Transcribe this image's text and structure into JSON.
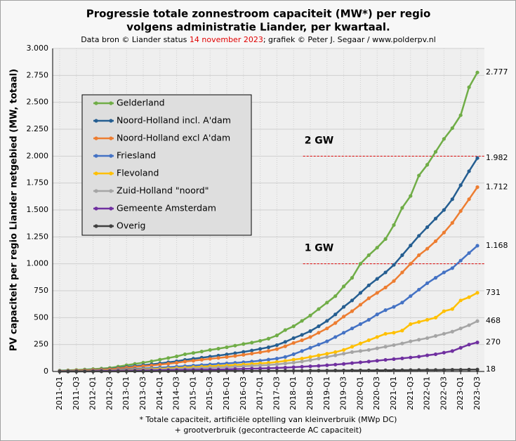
{
  "chart_data": {
    "type": "line",
    "title": [
      "Progressie totale zonnestroom capaciteit (MW*) per regio",
      "volgens administratie Liander, per kwartaal."
    ],
    "subtitle": [
      "Data bron © Liander status ",
      "14 november 2023",
      "; grafiek © Peter J. Segaar / www.polderpv.nl"
    ],
    "ylabel": "PV capaciteit per regio Liander netgebied (MW, totaal)",
    "footnote": [
      "* Totale capaciteit, artificiële optelling van kleinverbruik (MWp DC)",
      "+ grootverbruik (gecontracteerde AC capaciteit)"
    ],
    "categories": [
      "2011-Q1",
      null,
      "2011-Q3",
      null,
      "2012-Q1",
      null,
      "2012-Q3",
      null,
      "2013-Q1",
      null,
      "2013-Q3",
      null,
      "2014-Q1",
      null,
      "2014-Q3",
      null,
      "2015-Q1",
      null,
      "2015-Q3",
      null,
      "2016-Q1",
      null,
      "2016-Q3",
      null,
      "2017-Q1",
      null,
      "2017-Q3",
      null,
      "2018-Q1",
      null,
      "2018-Q3",
      null,
      "2019-Q1",
      null,
      "2019-Q3",
      null,
      "2020-Q1",
      null,
      "2020-Q3",
      null,
      "2021-Q1",
      null,
      "2021-Q3",
      null,
      "2022-Q1",
      null,
      "2022-Q3",
      null,
      "2023-Q1",
      null,
      "2023-Q3"
    ],
    "ylim": [
      0,
      3000
    ],
    "yticks": [
      0,
      250,
      500,
      750,
      {
        "value": 1000,
        "label": "1.000"
      },
      {
        "value": 1250,
        "label": "1.250"
      },
      {
        "value": 1500,
        "label": "1.500"
      },
      {
        "value": 1750,
        "label": "1.750"
      },
      {
        "value": 2000,
        "label": "2.000"
      },
      {
        "value": 2250,
        "label": "2.250"
      },
      {
        "value": 2500,
        "label": "2.500"
      },
      {
        "value": 2750,
        "label": "2.750"
      },
      {
        "value": 3000,
        "label": "3.000"
      }
    ],
    "grid": true,
    "legend": "upper left",
    "annotations": [
      {
        "text": "2 GW",
        "y": 2000,
        "color": "#e00000"
      },
      {
        "text": "1 GW",
        "y": 1000,
        "color": "#e00000"
      }
    ],
    "series": [
      {
        "name": "Gelderland",
        "color": "#70ad47",
        "end_label": "2.777",
        "values": [
          8,
          11,
          14,
          18,
          22,
          27,
          33,
          45,
          58,
          70,
          82,
          95,
          110,
          125,
          140,
          160,
          172,
          185,
          200,
          212,
          225,
          240,
          255,
          268,
          285,
          305,
          335,
          385,
          420,
          470,
          520,
          580,
          640,
          700,
          790,
          870,
          1000,
          1080,
          1150,
          1230,
          1360,
          1520,
          1630,
          1820,
          1920,
          2040,
          2160,
          2260,
          2380,
          2640,
          2777
        ]
      },
      {
        "name": "Noord-Holland incl. A'dam",
        "color": "#255e91",
        "end_label": "1.982",
        "values": [
          5,
          7,
          9,
          12,
          15,
          19,
          24,
          32,
          42,
          50,
          58,
          66,
          75,
          85,
          95,
          108,
          118,
          128,
          138,
          148,
          158,
          170,
          182,
          195,
          210,
          225,
          245,
          275,
          310,
          340,
          375,
          420,
          470,
          530,
          600,
          660,
          730,
          800,
          860,
          920,
          990,
          1080,
          1170,
          1260,
          1340,
          1420,
          1500,
          1600,
          1730,
          1860,
          1982
        ]
      },
      {
        "name": "Noord-Holland excl A'dam",
        "color": "#ed7d31",
        "end_label": "1.712",
        "values": [
          4,
          6,
          8,
          10,
          13,
          16,
          20,
          27,
          35,
          42,
          49,
          56,
          64,
          72,
          81,
          92,
          100,
          109,
          117,
          126,
          134,
          144,
          155,
          166,
          178,
          191,
          208,
          234,
          265,
          290,
          320,
          360,
          400,
          450,
          510,
          560,
          620,
          680,
          730,
          780,
          840,
          920,
          1000,
          1080,
          1140,
          1210,
          1290,
          1380,
          1490,
          1600,
          1712
        ]
      },
      {
        "name": "Friesland",
        "color": "#4472c4",
        "end_label": "1.168",
        "values": [
          2,
          3,
          4,
          5,
          7,
          9,
          11,
          15,
          20,
          24,
          28,
          32,
          36,
          40,
          45,
          50,
          55,
          60,
          65,
          70,
          75,
          80,
          86,
          92,
          100,
          110,
          120,
          135,
          160,
          190,
          220,
          250,
          280,
          320,
          360,
          400,
          440,
          480,
          530,
          570,
          600,
          640,
          700,
          760,
          820,
          870,
          920,
          960,
          1030,
          1100,
          1168
        ]
      },
      {
        "name": "Flevoland",
        "color": "#ffc000",
        "end_label": "731",
        "values": [
          1,
          2,
          3,
          4,
          5,
          6,
          8,
          10,
          13,
          16,
          19,
          22,
          25,
          28,
          32,
          36,
          40,
          44,
          48,
          52,
          56,
          60,
          65,
          70,
          75,
          80,
          88,
          98,
          110,
          120,
          135,
          150,
          165,
          180,
          200,
          230,
          260,
          290,
          320,
          350,
          360,
          380,
          440,
          460,
          480,
          500,
          560,
          580,
          660,
          690,
          731
        ]
      },
      {
        "name": "Zuid-Holland \"noord\"",
        "color": "#a5a5a5",
        "end_label": "468",
        "values": [
          1,
          2,
          2,
          3,
          4,
          5,
          6,
          8,
          10,
          12,
          14,
          16,
          18,
          20,
          23,
          26,
          29,
          32,
          35,
          38,
          41,
          44,
          48,
          52,
          56,
          60,
          66,
          74,
          82,
          92,
          105,
          120,
          135,
          150,
          165,
          180,
          190,
          200,
          215,
          230,
          245,
          260,
          280,
          295,
          310,
          330,
          350,
          370,
          400,
          430,
          468
        ]
      },
      {
        "name": "Gemeente Amsterdam",
        "color": "#7030a0",
        "end_label": "270",
        "values": [
          1,
          1,
          2,
          2,
          3,
          4,
          5,
          6,
          7,
          8,
          9,
          10,
          11,
          12,
          13,
          14,
          15,
          16,
          17,
          18,
          20,
          22,
          24,
          26,
          28,
          30,
          33,
          36,
          40,
          44,
          48,
          52,
          58,
          64,
          70,
          78,
          85,
          92,
          100,
          108,
          115,
          122,
          130,
          138,
          150,
          160,
          175,
          190,
          220,
          250,
          270
        ]
      },
      {
        "name": "Overig",
        "color": "#404040",
        "end_label": "18",
        "values": [
          0,
          0,
          0,
          1,
          1,
          1,
          1,
          1,
          2,
          2,
          2,
          2,
          3,
          3,
          3,
          3,
          4,
          4,
          4,
          4,
          5,
          5,
          5,
          5,
          6,
          6,
          6,
          7,
          7,
          7,
          8,
          8,
          8,
          9,
          9,
          10,
          10,
          10,
          11,
          11,
          12,
          12,
          13,
          13,
          14,
          14,
          15,
          16,
          16,
          17,
          18
        ]
      }
    ]
  }
}
